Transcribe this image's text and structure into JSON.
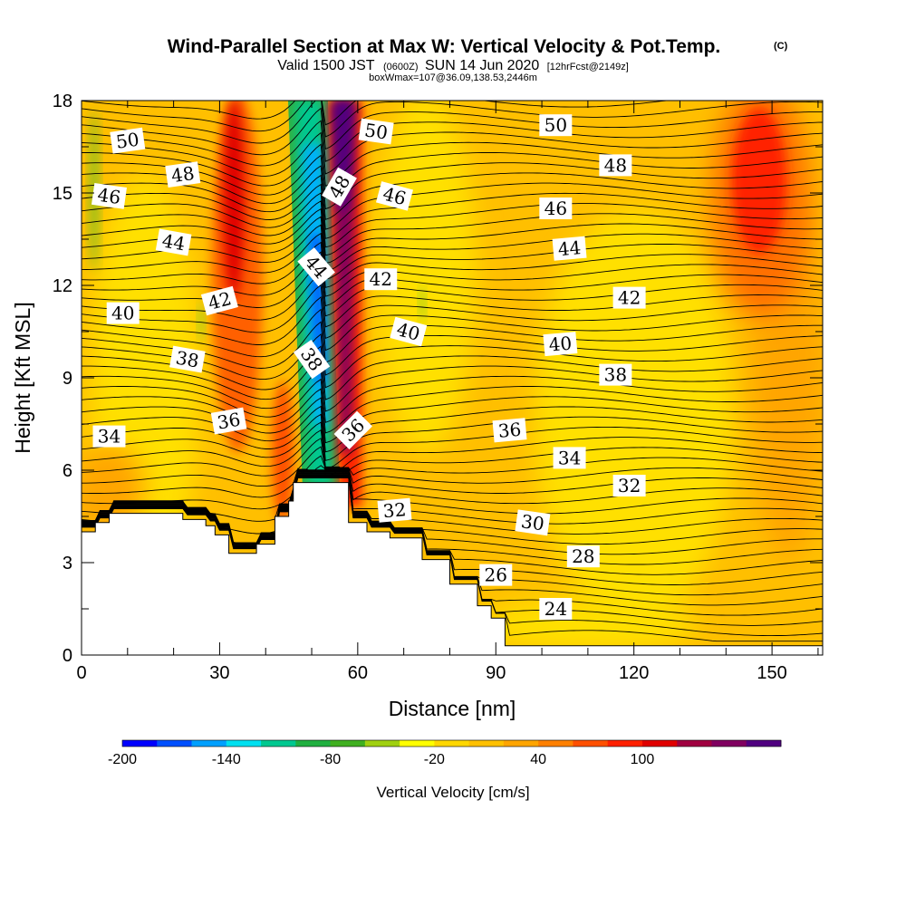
{
  "header": {
    "title": "Wind-Parallel Section at Max W: Vertical Velocity & Pot.Temp.",
    "copyright": "(C)",
    "valid_prefix": "Valid 1500 JST",
    "valid_utc": "(0600Z)",
    "valid_date": "SUN 14 Jun 2020",
    "forecast": "[12hrFcst@2149z]",
    "box_info": "boxWmax=107@36.09,138.53,2446m"
  },
  "chart_data": {
    "type": "heatmap",
    "xlabel": "Distance [nm]",
    "ylabel": "Height [Kft MSL]",
    "xlim": [
      0,
      161
    ],
    "ylim": [
      0,
      18
    ],
    "x_ticks": [
      "0",
      "30",
      "60",
      "90",
      "120",
      "150"
    ],
    "y_ticks": [
      "0",
      "3",
      "6",
      "9",
      "12",
      "15",
      "18"
    ],
    "terrain": {
      "x": [
        0,
        3,
        6,
        12,
        18,
        22,
        27,
        29,
        32,
        38,
        42,
        45,
        46,
        57,
        58,
        62,
        67,
        74,
        80,
        86,
        89,
        92,
        161
      ],
      "height": [
        4.0,
        4.3,
        4.6,
        4.6,
        4.6,
        4.4,
        4.2,
        3.9,
        3.3,
        3.6,
        4.5,
        5.0,
        5.6,
        5.6,
        4.3,
        4.0,
        3.8,
        3.1,
        2.3,
        1.6,
        1.2,
        0.3,
        0.3
      ]
    },
    "vertical_velocity_features": [
      {
        "x_center": 34,
        "z_bottom": 4.0,
        "z_top": 18,
        "w_max": 60
      },
      {
        "x_center": 51,
        "z_bottom": 5.5,
        "z_top": 18,
        "w_max": -170
      },
      {
        "x_center": 57,
        "z_bottom": 6.0,
        "z_top": 18,
        "w_max": 107
      },
      {
        "x_center": 147,
        "z_bottom": 9.5,
        "z_top": 18,
        "w_max": 70
      },
      {
        "x_center": 3,
        "z_bottom": 10.5,
        "z_top": 17.5,
        "w_max": -50
      }
    ],
    "theta_contour_labels": [
      {
        "text": "50",
        "x": 10,
        "y": 16.7,
        "angle": -8
      },
      {
        "text": "48",
        "x": 22,
        "y": 15.6,
        "angle": -8
      },
      {
        "text": "46",
        "x": 6,
        "y": 14.9,
        "angle": 8
      },
      {
        "text": "44",
        "x": 20,
        "y": 13.4,
        "angle": 10
      },
      {
        "text": "42",
        "x": 30,
        "y": 11.5,
        "angle": -15
      },
      {
        "text": "40",
        "x": 9,
        "y": 11.1,
        "angle": 0
      },
      {
        "text": "38",
        "x": 23,
        "y": 9.6,
        "angle": 10
      },
      {
        "text": "36",
        "x": 32,
        "y": 7.6,
        "angle": -10
      },
      {
        "text": "34",
        "x": 6,
        "y": 7.1,
        "angle": 0
      },
      {
        "text": "50",
        "x": 64,
        "y": 17.0,
        "angle": 8
      },
      {
        "text": "48",
        "x": 56,
        "y": 15.2,
        "angle": -60
      },
      {
        "text": "46",
        "x": 68,
        "y": 14.9,
        "angle": 15
      },
      {
        "text": "44",
        "x": 51,
        "y": 12.6,
        "angle": 50
      },
      {
        "text": "42",
        "x": 65,
        "y": 12.2,
        "angle": 0
      },
      {
        "text": "40",
        "x": 71,
        "y": 10.5,
        "angle": 15
      },
      {
        "text": "38",
        "x": 50,
        "y": 9.6,
        "angle": 55
      },
      {
        "text": "36",
        "x": 59,
        "y": 7.3,
        "angle": -45
      },
      {
        "text": "32",
        "x": 68,
        "y": 4.7,
        "angle": -5
      },
      {
        "text": "50",
        "x": 103,
        "y": 17.2,
        "angle": 0
      },
      {
        "text": "48",
        "x": 116,
        "y": 15.9,
        "angle": 0
      },
      {
        "text": "46",
        "x": 103,
        "y": 14.5,
        "angle": 0
      },
      {
        "text": "44",
        "x": 106,
        "y": 13.2,
        "angle": -5
      },
      {
        "text": "42",
        "x": 119,
        "y": 11.6,
        "angle": 0
      },
      {
        "text": "40",
        "x": 104,
        "y": 10.1,
        "angle": -5
      },
      {
        "text": "38",
        "x": 116,
        "y": 9.1,
        "angle": 0
      },
      {
        "text": "36",
        "x": 93,
        "y": 7.3,
        "angle": -5
      },
      {
        "text": "34",
        "x": 106,
        "y": 6.4,
        "angle": 0
      },
      {
        "text": "32",
        "x": 119,
        "y": 5.5,
        "angle": 0
      },
      {
        "text": "30",
        "x": 98,
        "y": 4.3,
        "angle": 8
      },
      {
        "text": "28",
        "x": 109,
        "y": 3.2,
        "angle": 0
      },
      {
        "text": "26",
        "x": 90,
        "y": 2.6,
        "angle": 0
      },
      {
        "text": "24",
        "x": 103,
        "y": 1.5,
        "angle": 0
      }
    ],
    "colorbar": {
      "label": "Vertical Velocity [cm/s]",
      "colors": [
        "#0000ff",
        "#0050ff",
        "#00a0ff",
        "#00e0f0",
        "#00c890",
        "#20b040",
        "#40b020",
        "#a0d010",
        "#ffff00",
        "#ffd700",
        "#ffc000",
        "#ffa500",
        "#ff8000",
        "#ff5000",
        "#ff2000",
        "#e00000",
        "#a00040",
        "#800060",
        "#500080"
      ],
      "tick_labels": [
        "-200",
        "-140",
        "-80",
        "-20",
        "40",
        "100"
      ],
      "tick_positions": [
        0,
        3,
        6,
        9,
        12,
        15
      ]
    }
  }
}
